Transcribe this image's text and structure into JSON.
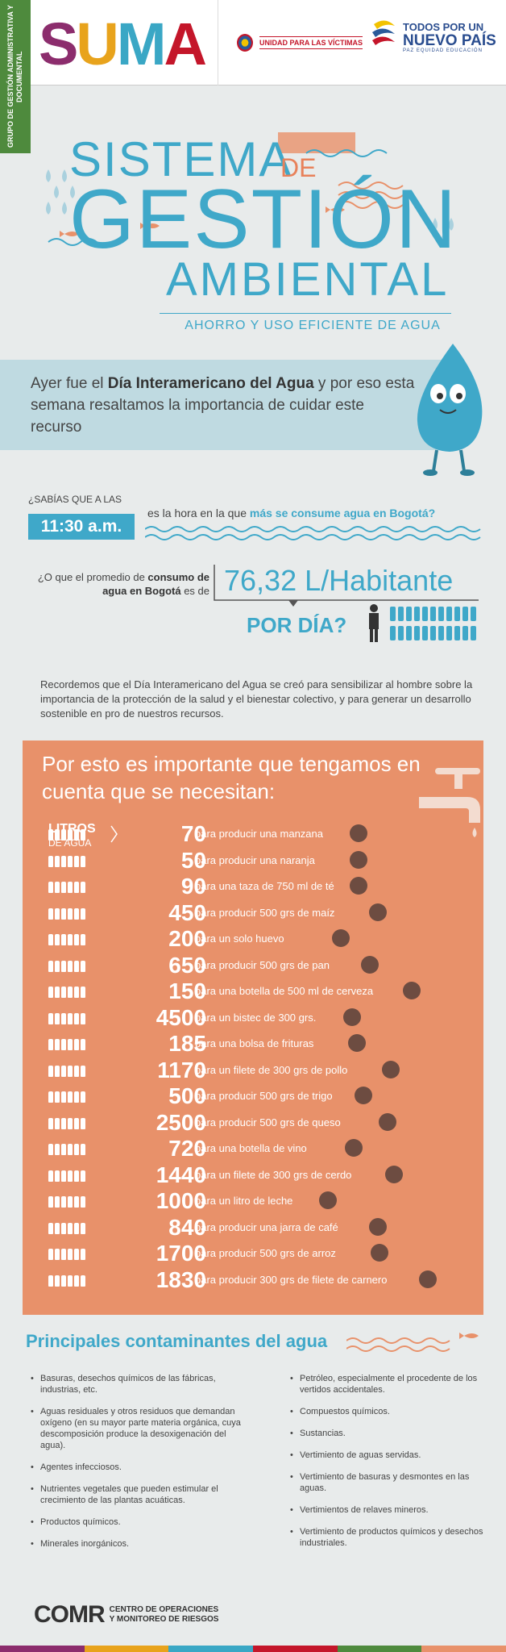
{
  "header": {
    "vertical_label": "GRUPO DE GESTIÓN ADMINISTRATIVA Y DOCUMENTAL",
    "suma_logo": "SUMA",
    "victimas": "UNIDAD PARA LAS VÍCTIMAS",
    "todos_line1": "TODOS POR UN",
    "todos_line2": "NUEVO PAÍS",
    "todos_line3": "PAZ   EQUIDAD   EDUCACIÓN"
  },
  "title": {
    "sistema": "SISTEMA",
    "de": "DE",
    "gestion": "GESTIÓN",
    "ambiental": "AMBIENTAL",
    "subtitle": "AHORRO Y USO EFICIENTE DE AGUA"
  },
  "intro": {
    "text_a": "Ayer fue el ",
    "text_b": "Día Interamericano del Agua",
    "text_c": " y por eso esta semana resaltamos la importancia de cuidar este recurso"
  },
  "stat1": {
    "question": "¿SABÍAS QUE A LAS",
    "time": "11:30 a.m.",
    "text_a": "es la hora en la que ",
    "text_b": "más se consume agua en Bogotá?"
  },
  "stat2": {
    "text_a": "¿O que el promedio de ",
    "text_b": "consumo de agua en Bogotá",
    "text_c": " es de",
    "liters": "76,32 L/Habitante",
    "per_day": "POR DÍA?"
  },
  "recordemos": "Recordemos que el Día Interamericano del Agua se creó para sensibilizar al hombre sobre la importancia de la protección de la salud y el bienestar colectivo, y para generar un desarrollo sostenible en pro de nuestros recursos.",
  "panel": {
    "title": "Por esto es importante que tengamos en cuenta que se necesitan:",
    "litros": "LITROS",
    "de_agua": "DE AGUA",
    "rows": [
      {
        "n": "70",
        "d": "para producir una manzana"
      },
      {
        "n": "50",
        "d": "para producir una naranja"
      },
      {
        "n": "90",
        "d": "para una taza de 750 ml de té"
      },
      {
        "n": "450",
        "d": "para producir 500 grs de maíz"
      },
      {
        "n": "200",
        "d": "para un solo huevo"
      },
      {
        "n": "650",
        "d": "para producir 500 grs de pan"
      },
      {
        "n": "150",
        "d": "para una botella de 500 ml de cerveza"
      },
      {
        "n": "4500",
        "d": "para un bistec de 300 grs."
      },
      {
        "n": "185",
        "d": "para una bolsa de frituras"
      },
      {
        "n": "1170",
        "d": "para un filete de 300 grs de pollo"
      },
      {
        "n": "500",
        "d": "para producir 500 grs de trigo"
      },
      {
        "n": "2500",
        "d": "para producir 500 grs de queso"
      },
      {
        "n": "720",
        "d": "para una botella de vino"
      },
      {
        "n": "1440",
        "d": "para un filete de 300 grs de cerdo"
      },
      {
        "n": "1000",
        "d": "para un litro de leche"
      },
      {
        "n": "840",
        "d": "para producir una jarra de café"
      },
      {
        "n": "1700",
        "d": "para producir 500 grs de arroz"
      },
      {
        "n": "1830",
        "d": "para producir 300 grs de filete de carnero"
      }
    ]
  },
  "contaminantes": {
    "title": "Principales contaminantes del agua",
    "left": [
      "Basuras, desechos químicos de las fábricas, industrias, etc.",
      "Aguas residuales y otros residuos que demandan oxígeno (en su mayor parte materia orgánica, cuya descomposición produce la desoxigenación del agua).",
      "Agentes infecciosos.",
      "Nutrientes vegetales que pueden estimular el crecimiento de las plantas acuáticas.",
      "Productos químicos.",
      "Minerales inorgánicos."
    ],
    "right": [
      "Petróleo, especialmente el procedente de los vertidos accidentales.",
      "Compuestos químicos.",
      "Sustancias.",
      "Vertimiento de aguas servidas.",
      "Vertimiento de basuras y desmontes en las aguas.",
      "Vertimientos de relaves mineros.",
      "Vertimiento de productos químicos y desechos industriales."
    ]
  },
  "footer": {
    "logo": "COMR",
    "line1": "CENTRO DE OPERACIONES",
    "line2": "Y MONITOREO DE RIESGOS"
  }
}
